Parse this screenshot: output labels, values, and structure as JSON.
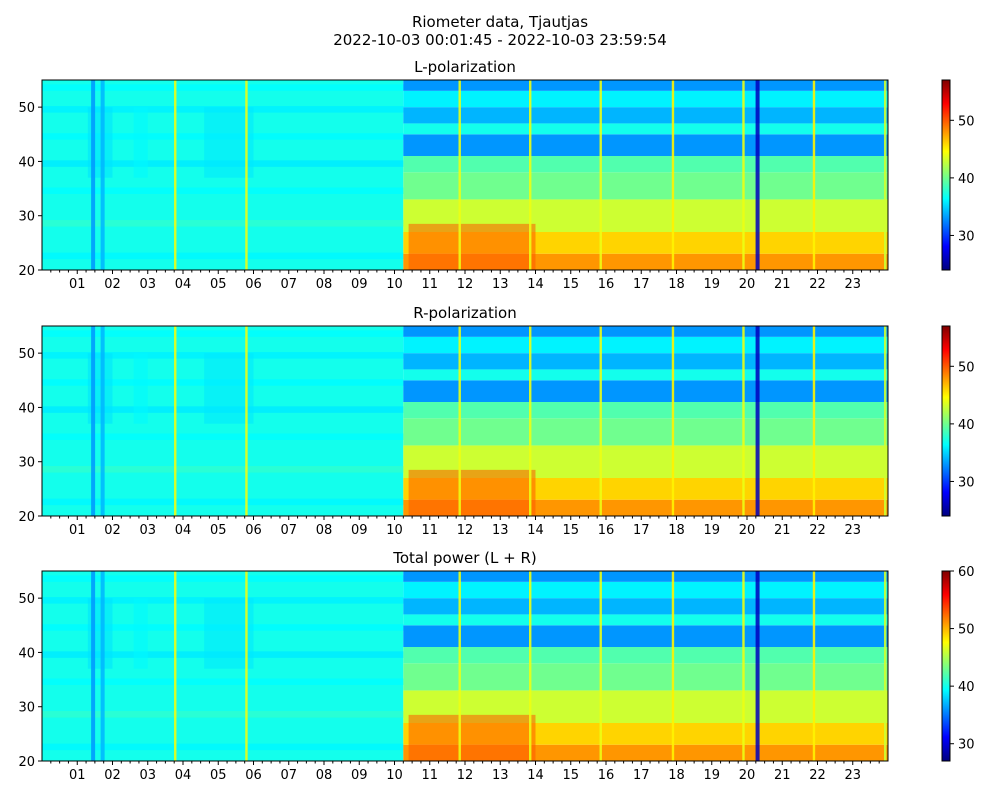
{
  "figure": {
    "title_line1": "Riometer data, Tjautjas",
    "title_line2": "2022-10-03 00:01:45 - 2022-10-03 23:59:54"
  },
  "colormap": {
    "name": "jet",
    "stops": [
      "#00007f",
      "#0000ff",
      "#007fff",
      "#00ffff",
      "#7fff7f",
      "#ffff00",
      "#ff7f00",
      "#ff0000",
      "#7f0000"
    ]
  },
  "chart_data": [
    {
      "type": "heatmap",
      "title": "L-polarization",
      "xlabel": "",
      "ylabel": "",
      "xlim": [
        0,
        24
      ],
      "ylim": [
        20,
        55
      ],
      "yticks": [
        20,
        30,
        40,
        50
      ],
      "xticks": [
        1,
        2,
        3,
        4,
        5,
        6,
        7,
        8,
        9,
        10,
        11,
        12,
        13,
        14,
        15,
        16,
        17,
        18,
        19,
        20,
        21,
        22,
        23
      ],
      "xtick_labels": [
        "01",
        "02",
        "03",
        "04",
        "05",
        "06",
        "07",
        "08",
        "09",
        "10",
        "11",
        "12",
        "13",
        "14",
        "15",
        "16",
        "17",
        "18",
        "19",
        "20",
        "21",
        "22",
        "23"
      ],
      "colorbar": {
        "range": [
          24,
          57
        ],
        "ticks": [
          30,
          40,
          50
        ]
      },
      "baseline_before_change": 37,
      "change_time_h": 10.25,
      "post_change_profile": [
        {
          "y_from": 20,
          "y_to": 23,
          "value": 48
        },
        {
          "y_from": 23,
          "y_to": 27,
          "value": 46
        },
        {
          "y_from": 27,
          "y_to": 33,
          "value": 43
        },
        {
          "y_from": 33,
          "y_to": 38,
          "value": 40
        },
        {
          "y_from": 38,
          "y_to": 41,
          "value": 39
        },
        {
          "y_from": 41,
          "y_to": 45,
          "value": 33
        },
        {
          "y_from": 45,
          "y_to": 47,
          "value": 37
        },
        {
          "y_from": 47,
          "y_to": 50,
          "value": 34
        },
        {
          "y_from": 50,
          "y_to": 53,
          "value": 36
        },
        {
          "y_from": 53,
          "y_to": 55,
          "value": 33
        }
      ],
      "spikes": [
        {
          "t": 3.78,
          "value": 44
        },
        {
          "t": 5.8,
          "value": 44
        },
        {
          "t": 11.85,
          "value": 44
        },
        {
          "t": 13.85,
          "value": 44
        },
        {
          "t": 15.85,
          "value": 44
        },
        {
          "t": 17.9,
          "value": 45
        },
        {
          "t": 19.9,
          "value": 44
        },
        {
          "t": 21.9,
          "value": 45
        },
        {
          "t": 23.92,
          "value": 43
        }
      ],
      "dips": [
        {
          "t": 1.45,
          "value": 33
        },
        {
          "t": 1.72,
          "value": 34
        },
        {
          "t": 20.3,
          "value": 26
        }
      ]
    },
    {
      "type": "heatmap",
      "title": "R-polarization",
      "xlabel": "",
      "ylabel": "",
      "xlim": [
        0,
        24
      ],
      "ylim": [
        20,
        55
      ],
      "yticks": [
        20,
        30,
        40,
        50
      ],
      "xticks": [
        1,
        2,
        3,
        4,
        5,
        6,
        7,
        8,
        9,
        10,
        11,
        12,
        13,
        14,
        15,
        16,
        17,
        18,
        19,
        20,
        21,
        22,
        23
      ],
      "xtick_labels": [
        "01",
        "02",
        "03",
        "04",
        "05",
        "06",
        "07",
        "08",
        "09",
        "10",
        "11",
        "12",
        "13",
        "14",
        "15",
        "16",
        "17",
        "18",
        "19",
        "20",
        "21",
        "22",
        "23"
      ],
      "colorbar": {
        "range": [
          24,
          57
        ],
        "ticks": [
          30,
          40,
          50
        ]
      },
      "baseline_before_change": 37,
      "change_time_h": 10.25,
      "post_change_profile": [
        {
          "y_from": 20,
          "y_to": 23,
          "value": 48
        },
        {
          "y_from": 23,
          "y_to": 27,
          "value": 46
        },
        {
          "y_from": 27,
          "y_to": 33,
          "value": 43
        },
        {
          "y_from": 33,
          "y_to": 38,
          "value": 40
        },
        {
          "y_from": 38,
          "y_to": 41,
          "value": 39
        },
        {
          "y_from": 41,
          "y_to": 45,
          "value": 33
        },
        {
          "y_from": 45,
          "y_to": 47,
          "value": 37
        },
        {
          "y_from": 47,
          "y_to": 50,
          "value": 34
        },
        {
          "y_from": 50,
          "y_to": 53,
          "value": 36
        },
        {
          "y_from": 53,
          "y_to": 55,
          "value": 33
        }
      ],
      "spikes": [
        {
          "t": 3.78,
          "value": 44
        },
        {
          "t": 5.8,
          "value": 44
        },
        {
          "t": 11.85,
          "value": 44
        },
        {
          "t": 13.85,
          "value": 44
        },
        {
          "t": 15.85,
          "value": 44
        },
        {
          "t": 17.9,
          "value": 45
        },
        {
          "t": 19.9,
          "value": 44
        },
        {
          "t": 21.9,
          "value": 45
        },
        {
          "t": 23.92,
          "value": 43
        }
      ],
      "dips": [
        {
          "t": 1.45,
          "value": 33
        },
        {
          "t": 1.72,
          "value": 34
        },
        {
          "t": 20.3,
          "value": 26
        }
      ]
    },
    {
      "type": "heatmap",
      "title": "Total power (L + R)",
      "xlabel": "",
      "ylabel": "",
      "xlim": [
        0,
        24
      ],
      "ylim": [
        20,
        55
      ],
      "yticks": [
        20,
        30,
        40,
        50
      ],
      "xticks": [
        1,
        2,
        3,
        4,
        5,
        6,
        7,
        8,
        9,
        10,
        11,
        12,
        13,
        14,
        15,
        16,
        17,
        18,
        19,
        20,
        21,
        22,
        23
      ],
      "xtick_labels": [
        "01",
        "02",
        "03",
        "04",
        "05",
        "06",
        "07",
        "08",
        "09",
        "10",
        "11",
        "12",
        "13",
        "14",
        "15",
        "16",
        "17",
        "18",
        "19",
        "20",
        "21",
        "22",
        "23"
      ],
      "colorbar": {
        "range": [
          27,
          60
        ],
        "ticks": [
          30,
          40,
          50,
          60
        ]
      },
      "baseline_before_change": 40,
      "change_time_h": 10.25,
      "post_change_profile": [
        {
          "y_from": 20,
          "y_to": 23,
          "value": 51
        },
        {
          "y_from": 23,
          "y_to": 27,
          "value": 49
        },
        {
          "y_from": 27,
          "y_to": 33,
          "value": 46
        },
        {
          "y_from": 33,
          "y_to": 38,
          "value": 43
        },
        {
          "y_from": 38,
          "y_to": 41,
          "value": 42
        },
        {
          "y_from": 41,
          "y_to": 45,
          "value": 36
        },
        {
          "y_from": 45,
          "y_to": 47,
          "value": 40
        },
        {
          "y_from": 47,
          "y_to": 50,
          "value": 37
        },
        {
          "y_from": 50,
          "y_to": 53,
          "value": 39
        },
        {
          "y_from": 53,
          "y_to": 55,
          "value": 36
        }
      ],
      "spikes": [
        {
          "t": 3.78,
          "value": 47
        },
        {
          "t": 5.8,
          "value": 47
        },
        {
          "t": 11.85,
          "value": 47
        },
        {
          "t": 13.85,
          "value": 47
        },
        {
          "t": 15.85,
          "value": 47
        },
        {
          "t": 17.9,
          "value": 48
        },
        {
          "t": 19.9,
          "value": 47
        },
        {
          "t": 21.9,
          "value": 48
        },
        {
          "t": 23.92,
          "value": 46
        }
      ],
      "dips": [
        {
          "t": 1.45,
          "value": 36
        },
        {
          "t": 1.72,
          "value": 37
        },
        {
          "t": 20.3,
          "value": 29
        }
      ]
    }
  ]
}
